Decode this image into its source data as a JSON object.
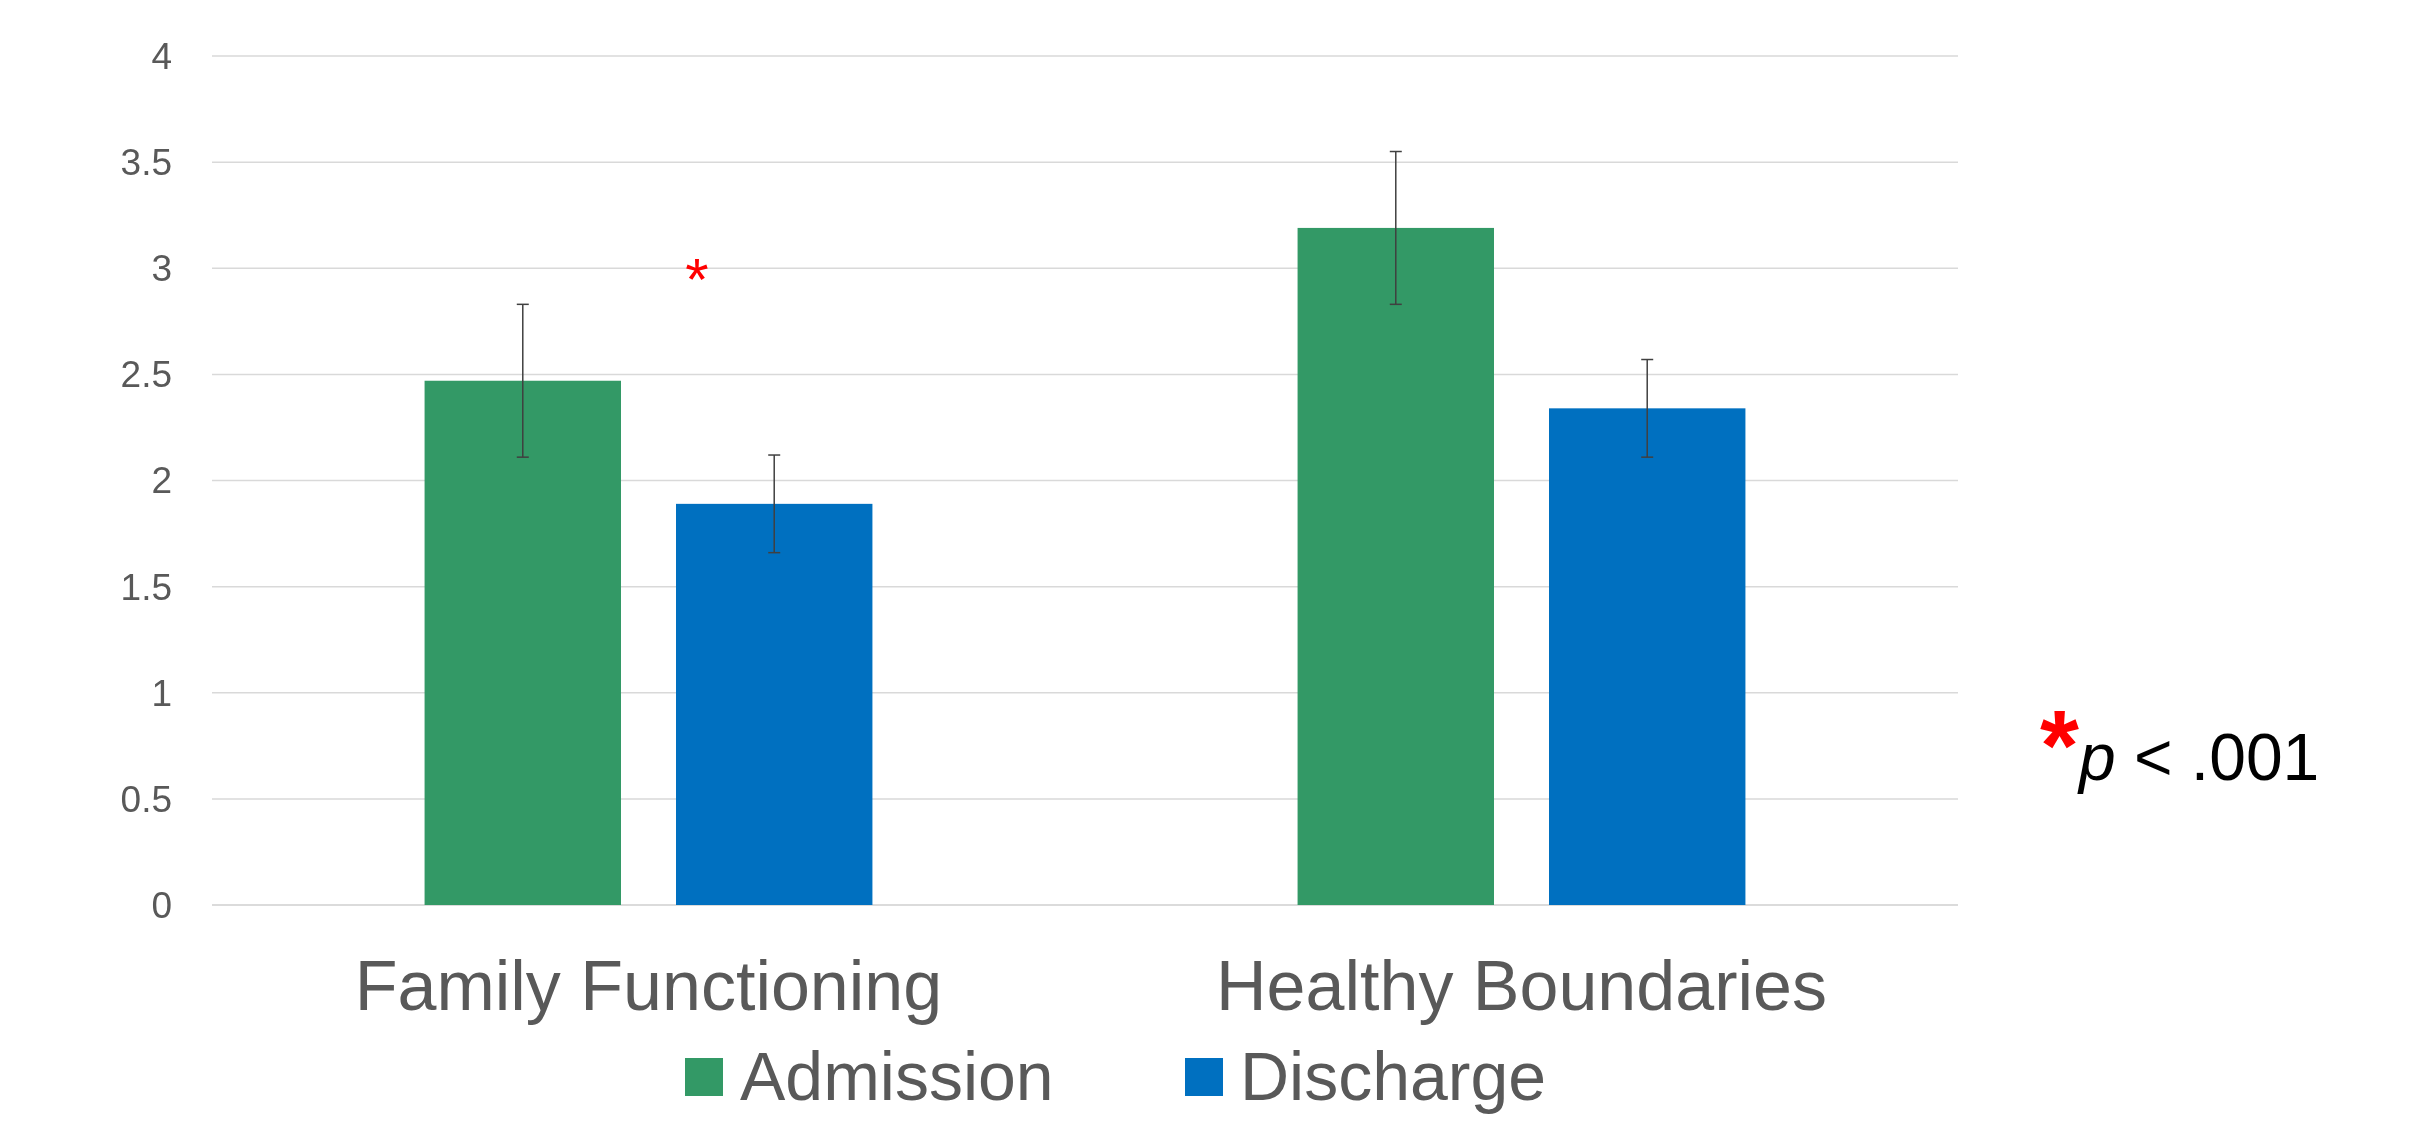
{
  "chart_data": {
    "type": "bar",
    "categories": [
      "Family Functioning",
      "Healthy Boundaries"
    ],
    "series": [
      {
        "name": "Admission",
        "color": "#339966",
        "values": [
          2.47,
          3.19
        ],
        "errors": [
          0.36,
          0.36
        ]
      },
      {
        "name": "Discharge",
        "color": "#0070c0",
        "values": [
          1.89,
          2.34
        ],
        "errors": [
          0.23,
          0.23
        ]
      }
    ],
    "ylim": [
      0,
      4
    ],
    "yticks": [
      0,
      0.5,
      1,
      1.5,
      2,
      2.5,
      3,
      3.5,
      4
    ],
    "grid": "y",
    "legend": "bottom",
    "annotations": [
      "*",
      "*p < .001"
    ]
  }
}
